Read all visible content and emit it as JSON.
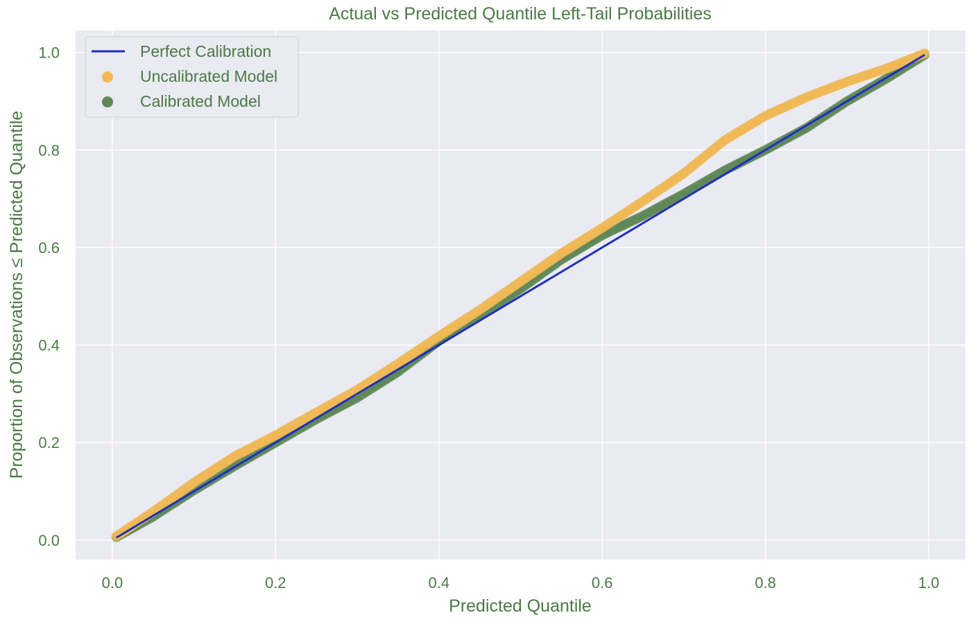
{
  "colors": {
    "text": "#4a7a45",
    "plot_bg": "#eaeaf2",
    "grid": "#ffffff",
    "perfect": "#1f2fbf",
    "uncalibrated": "#f0b856",
    "calibrated": "#5e8756"
  },
  "chart_data": {
    "type": "scatter",
    "title": "Actual vs Predicted Quantile Left-Tail Probabilities",
    "xlabel": "Predicted Quantile",
    "ylabel": "Proportion of Observations ≤ Predicted Quantile",
    "xlim": [
      -0.045,
      1.045
    ],
    "ylim": [
      -0.04,
      1.045
    ],
    "xticks": [
      0.0,
      0.2,
      0.4,
      0.6,
      0.8,
      1.0
    ],
    "yticks": [
      0.0,
      0.2,
      0.4,
      0.6,
      0.8,
      1.0
    ],
    "xtick_labels": [
      "0.0",
      "0.2",
      "0.4",
      "0.6",
      "0.8",
      "1.0"
    ],
    "ytick_labels": [
      "0.0",
      "0.2",
      "0.4",
      "0.6",
      "0.8",
      "1.0"
    ],
    "grid": true,
    "legend_position": "top-left",
    "legend": [
      "Perfect Calibration",
      "Uncalibrated Model",
      "Calibrated Model"
    ],
    "series": [
      {
        "name": "Perfect Calibration",
        "kind": "line",
        "x": [
          0.005,
          0.995
        ],
        "y": [
          0.005,
          0.995
        ]
      },
      {
        "name": "Uncalibrated Model",
        "kind": "scatter",
        "x": [
          0.005,
          0.05,
          0.1,
          0.15,
          0.2,
          0.25,
          0.3,
          0.35,
          0.4,
          0.45,
          0.5,
          0.55,
          0.6,
          0.65,
          0.7,
          0.75,
          0.8,
          0.85,
          0.9,
          0.95,
          0.995
        ],
        "y": [
          0.008,
          0.058,
          0.118,
          0.172,
          0.215,
          0.262,
          0.308,
          0.362,
          0.418,
          0.472,
          0.53,
          0.588,
          0.64,
          0.695,
          0.752,
          0.82,
          0.87,
          0.908,
          0.94,
          0.968,
          0.998
        ]
      },
      {
        "name": "Calibrated Model",
        "kind": "scatter",
        "x": [
          0.005,
          0.05,
          0.1,
          0.15,
          0.2,
          0.25,
          0.3,
          0.35,
          0.4,
          0.45,
          0.5,
          0.55,
          0.6,
          0.65,
          0.7,
          0.75,
          0.8,
          0.85,
          0.9,
          0.95,
          0.995
        ],
        "y": [
          0.006,
          0.048,
          0.102,
          0.152,
          0.2,
          0.248,
          0.292,
          0.345,
          0.408,
          0.46,
          0.515,
          0.575,
          0.625,
          0.665,
          0.71,
          0.758,
          0.8,
          0.845,
          0.9,
          0.948,
          0.995
        ]
      }
    ]
  }
}
